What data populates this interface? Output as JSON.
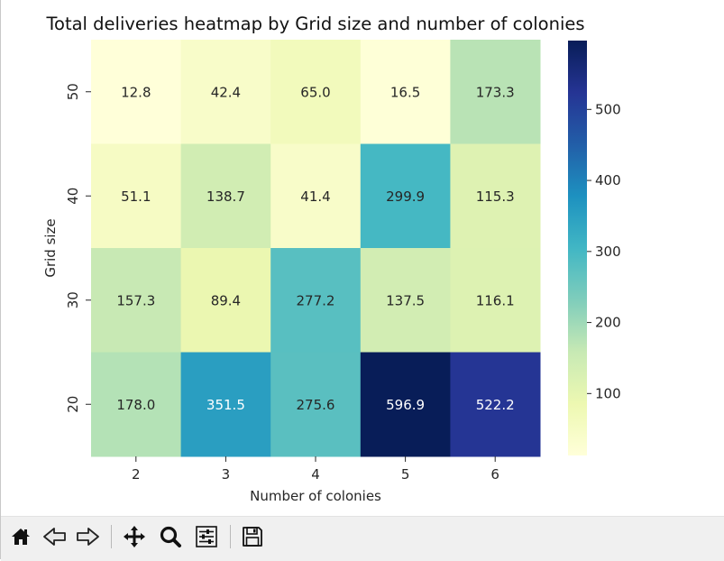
{
  "chart_data": {
    "type": "heatmap",
    "title": "Total deliveries heatmap by Grid size and number of colonies",
    "xlabel": "Number of colonies",
    "ylabel": "Grid size",
    "x_categories": [
      "2",
      "3",
      "4",
      "5",
      "6"
    ],
    "y_categories": [
      "50",
      "40",
      "30",
      "20"
    ],
    "values": [
      [
        12.8,
        42.4,
        65.0,
        16.5,
        173.3
      ],
      [
        51.1,
        138.7,
        41.4,
        299.9,
        115.3
      ],
      [
        157.3,
        89.4,
        277.2,
        137.5,
        116.1
      ],
      [
        178.0,
        351.5,
        275.6,
        596.9,
        522.2
      ]
    ],
    "value_format": "1 decimal",
    "colormap": "YlGnBu",
    "color_range": [
      12.8,
      596.9
    ],
    "colorbar_ticks": [
      "100",
      "200",
      "300",
      "400",
      "500"
    ]
  },
  "toolbar": {
    "buttons": [
      {
        "name": "home-button",
        "icon": "home-icon"
      },
      {
        "name": "back-button",
        "icon": "arrow-left-icon"
      },
      {
        "name": "forward-button",
        "icon": "arrow-right-icon"
      },
      {
        "name": "pan-button",
        "icon": "move-icon"
      },
      {
        "name": "zoom-button",
        "icon": "magnifier-icon"
      },
      {
        "name": "configure-subplots-button",
        "icon": "sliders-icon"
      },
      {
        "name": "save-button",
        "icon": "floppy-disk-icon"
      }
    ]
  }
}
